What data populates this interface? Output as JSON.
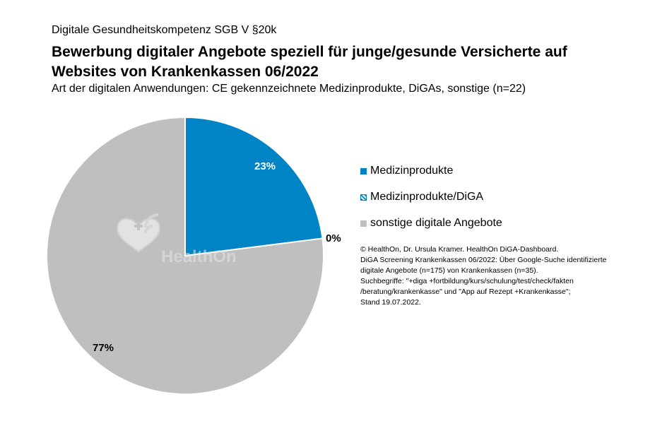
{
  "header": {
    "supertitle": "Digitale Gesundheitskompetenz SGB V §20k",
    "title": "Bewerbung digitaler Angebote speziell für junge/gesunde Versicherte auf Websites von Krankenkassen 06/2022",
    "subtitle": "Art der digitalen Anwendungen: CE gekennzeichnete Medizinprodukte, DiGAs, sonstige (n=22)"
  },
  "chart_data": {
    "type": "pie",
    "slices": [
      {
        "label": "Medizinprodukte",
        "value": 23,
        "display": "23%",
        "color": "#0084c6",
        "pattern": "solid"
      },
      {
        "label": "Medizinprodukte/DiGA",
        "value": 0,
        "display": "0%",
        "color": "#0084c6",
        "pattern": "hatched"
      },
      {
        "label": "sonstige digitale Angebote",
        "value": 77,
        "display": "77%",
        "color": "#bfbfbf",
        "pattern": "solid"
      }
    ],
    "legend_position": "right"
  },
  "watermark": {
    "text": "HealthOn"
  },
  "credit": [
    "© HealthOn, Dr. Ursula Kramer. HealthOn DiGA-Dashboard.",
    "DiGA Screening Krankenkassen 06/2022: Über Google-Suche identifizierte",
    "digitale Angebote (n=175) von Krankenkassen (n=35).",
    "Suchbegriffe: \"+diga +fortbildung/kurs/schulung/test/check/fakten",
    "/beratung/krankenkasse\" und \"App auf Rezept +Krankenkasse\";",
    "Stand 19.07.2022."
  ]
}
